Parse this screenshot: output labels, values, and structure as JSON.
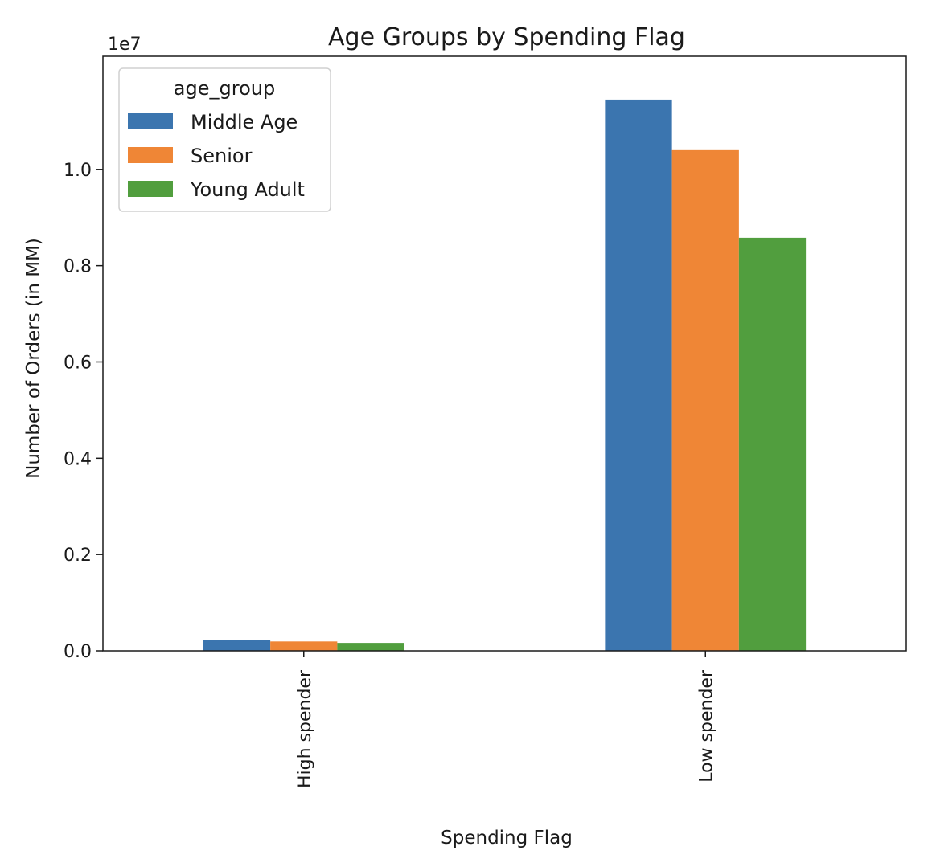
{
  "chart_data": {
    "type": "bar",
    "title": "Age Groups by Spending Flag",
    "xlabel": "Spending Flag",
    "ylabel": "Number of Orders (in MM)",
    "offset_text": "1e7",
    "categories": [
      "High spender",
      "Low spender"
    ],
    "series": [
      {
        "name": "Middle Age",
        "color": "#3b75af",
        "values": [
          225000,
          11450000
        ]
      },
      {
        "name": "Senior",
        "color": "#ef8636",
        "values": [
          195000,
          10400000
        ]
      },
      {
        "name": "Young Adult",
        "color": "#519e3e",
        "values": [
          165000,
          8580000
        ]
      }
    ],
    "ylim": [
      0,
      12350000
    ],
    "yticks": [
      {
        "value": 0,
        "label": "0.0"
      },
      {
        "value": 2000000,
        "label": "0.2"
      },
      {
        "value": 4000000,
        "label": "0.4"
      },
      {
        "value": 6000000,
        "label": "0.6"
      },
      {
        "value": 8000000,
        "label": "0.8"
      },
      {
        "value": 10000000,
        "label": "1.0"
      }
    ],
    "legend": {
      "title": "age_group",
      "position": "top-left"
    },
    "grid": false
  }
}
